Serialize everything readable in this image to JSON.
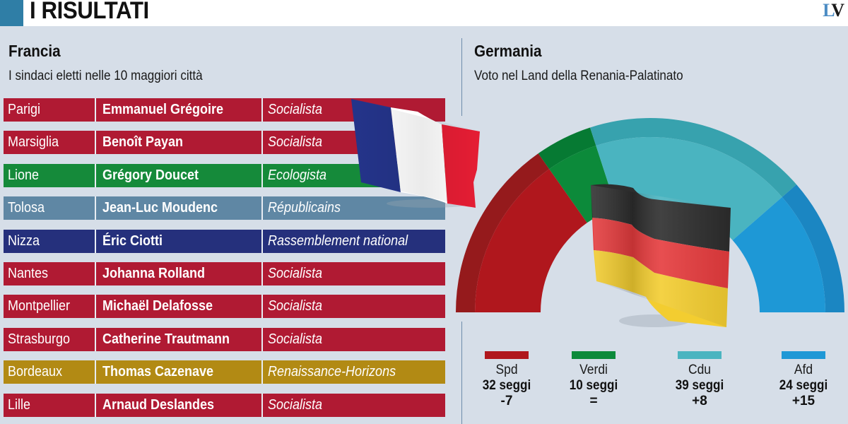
{
  "header": {
    "title": "I RISULTATI",
    "logo_left": "L",
    "logo_right": "V",
    "accent_color": "#2f7ea6"
  },
  "france": {
    "title": "Francia",
    "subtitle": "I sindaci eletti nelle 10 maggiori città",
    "rows": [
      {
        "city": "Parigi",
        "mayor": "Emmanuel Grégoire",
        "party": "Socialista",
        "color": "#b01a33"
      },
      {
        "city": "Marsiglia",
        "mayor": "Benoît Payan",
        "party": "Socialista",
        "color": "#b01a33"
      },
      {
        "city": "Lione",
        "mayor": "Grégory Doucet",
        "party": "Ecologista",
        "color": "#158a3a"
      },
      {
        "city": "Tolosa",
        "mayor": "Jean-Luc Moudenc",
        "party": "Républicains",
        "color": "#5f87a4"
      },
      {
        "city": "Nizza",
        "mayor": "Éric Ciotti",
        "party": "Rassemblement national",
        "color": "#25307c"
      },
      {
        "city": "Nantes",
        "mayor": "Johanna Rolland",
        "party": "Socialista",
        "color": "#b01a33"
      },
      {
        "city": "Montpellier",
        "mayor": "Michaël Delafosse",
        "party": "Socialista",
        "color": "#b01a33"
      },
      {
        "city": "Strasburgo",
        "mayor": "Catherine Trautmann",
        "party": "Socialista",
        "color": "#b01a33"
      },
      {
        "city": "Bordeaux",
        "mayor": "Thomas Cazenave",
        "party": "Renaissance-Horizons",
        "color": "#b28a14"
      },
      {
        "city": "Lille",
        "mayor": "Arnaud Deslandes",
        "party": "Socialista",
        "color": "#b01a33"
      }
    ]
  },
  "germany": {
    "title": "Germania",
    "subtitle": "Voto nel Land della Renania-Palatinato"
  },
  "chart_data": {
    "type": "pie",
    "subtype": "parliament-semicircle",
    "title": "Voto nel Land della Renania-Palatinato",
    "categories": [
      "Spd",
      "Verdi",
      "Cdu",
      "Afd"
    ],
    "values": [
      32,
      10,
      39,
      24
    ],
    "unit": "seggi",
    "changes": [
      "-7",
      "=",
      "+8",
      "+15"
    ],
    "colors": [
      "#b0171d",
      "#0c8a3a",
      "#4ab4c0",
      "#1e98d6"
    ],
    "edge_colors": [
      "#951a1c",
      "#067a33",
      "#37a2ae",
      "#1b86c2"
    ],
    "legend_position": "bottom",
    "legend": [
      {
        "name": "Spd",
        "seats": "32 seggi",
        "change": "-7"
      },
      {
        "name": "Verdi",
        "seats": "10 seggi",
        "change": "="
      },
      {
        "name": "Cdu",
        "seats": "39 seggi",
        "change": "+8"
      },
      {
        "name": "Afd",
        "seats": "24 seggi",
        "change": "+15"
      }
    ]
  }
}
